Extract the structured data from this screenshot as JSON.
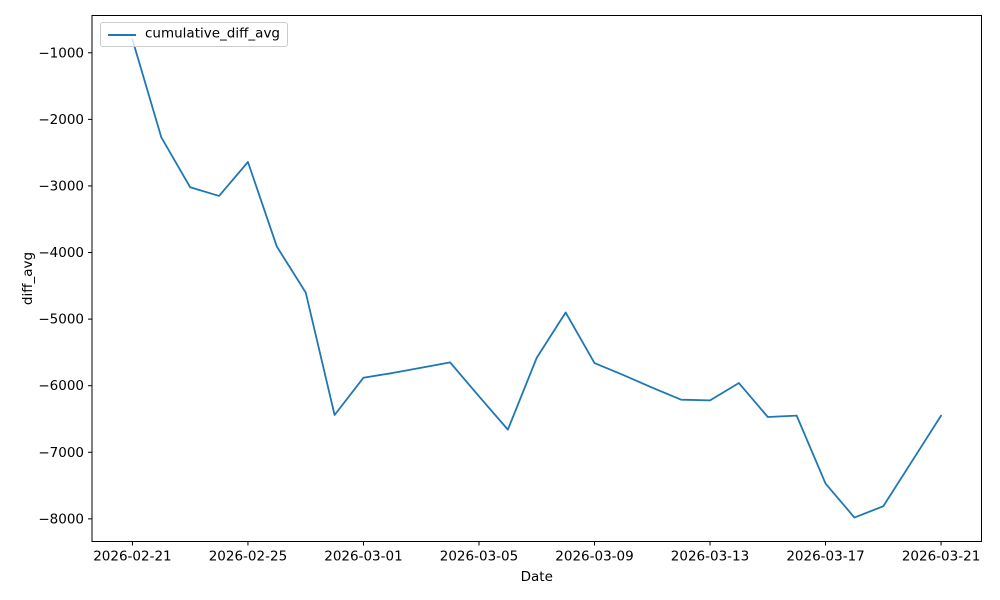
{
  "figure": {
    "background": "#ffffff"
  },
  "chart_data": {
    "type": "line",
    "title": "",
    "xlabel": "Date",
    "ylabel": "diff_avg",
    "legend_label": "cumulative_diff_avg",
    "legend_position": "upper left",
    "grid": false,
    "line_color": "#1f77b4",
    "axis_color": "#000000",
    "x": [
      "2026-02-21",
      "2026-02-22",
      "2026-02-23",
      "2026-02-24",
      "2026-02-25",
      "2026-02-26",
      "2026-02-27",
      "2026-02-28",
      "2026-03-01",
      "2026-03-02",
      "2026-03-03",
      "2026-03-04",
      "2026-03-05",
      "2026-03-06",
      "2026-03-07",
      "2026-03-08",
      "2026-03-09",
      "2026-03-10",
      "2026-03-11",
      "2026-03-12",
      "2026-03-13",
      "2026-03-14",
      "2026-03-15",
      "2026-03-16",
      "2026-03-17",
      "2026-03-18",
      "2026-03-19",
      "2026-03-20",
      "2026-03-21"
    ],
    "series": [
      {
        "name": "cumulative_diff_avg",
        "values": [
          -800,
          -2270,
          -3020,
          -3150,
          -2640,
          -3910,
          -4600,
          -6440,
          -5880,
          -5810,
          -5730,
          -5650,
          -6160,
          -6660,
          -5580,
          -4900,
          -5660,
          -5840,
          -6030,
          -6210,
          -6220,
          -5960,
          -6470,
          -6450,
          -7470,
          -7980,
          -7810,
          -7130,
          -6450
        ]
      }
    ],
    "x_tick_labels": [
      "2026-02-21",
      "2026-02-25",
      "2026-03-01",
      "2026-03-05",
      "2026-03-09",
      "2026-03-13",
      "2026-03-17",
      "2026-03-21"
    ],
    "y_tick_values": [
      -1000,
      -2000,
      -3000,
      -4000,
      -5000,
      -6000,
      -7000,
      -8000
    ],
    "y_tick_labels": [
      "−1000",
      "−2000",
      "−3000",
      "−4000",
      "−5000",
      "−6000",
      "−7000",
      "−8000"
    ],
    "ylim": [
      -8340,
      -440
    ],
    "x_margin_days": 1.4
  }
}
